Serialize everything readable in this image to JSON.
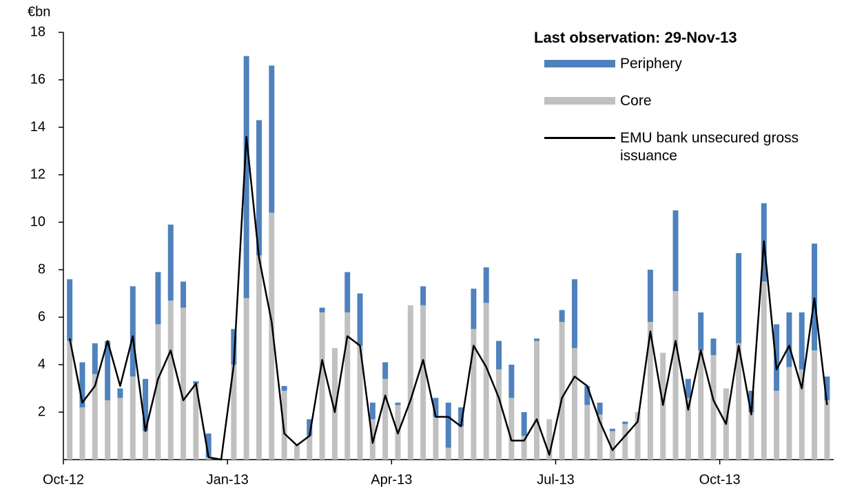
{
  "chart_data": {
    "type": "bar",
    "stacked": true,
    "y_axis_label": "€bn",
    "annotation": "Last observation: 29-Nov-13",
    "categories": [
      "Oct-12",
      null,
      null,
      null,
      null,
      null,
      null,
      null,
      null,
      null,
      null,
      null,
      null,
      "Jan-13",
      null,
      null,
      null,
      null,
      null,
      null,
      null,
      null,
      null,
      null,
      null,
      null,
      "Apr-13",
      null,
      null,
      null,
      null,
      null,
      null,
      null,
      null,
      null,
      null,
      null,
      null,
      "Jul-13",
      null,
      null,
      null,
      null,
      null,
      null,
      null,
      null,
      null,
      null,
      null,
      null,
      "Oct-13",
      null,
      null,
      null,
      null,
      null,
      null,
      null,
      null
    ],
    "series": [
      {
        "name": "Core",
        "color": "#c0c0c0",
        "values": [
          5.0,
          2.2,
          3.6,
          2.5,
          2.6,
          3.5,
          1.2,
          5.7,
          6.7,
          6.4,
          3.2,
          0.1,
          0,
          4.0,
          6.8,
          8.6,
          10.4,
          2.9,
          0.6,
          1.0,
          6.2,
          4.7,
          6.2,
          4.8,
          1.7,
          3.4,
          2.3,
          6.5,
          6.5,
          1.8,
          0.5,
          1.4,
          5.5,
          6.6,
          3.8,
          2.6,
          1.0,
          5.0,
          1.7,
          5.8,
          4.7,
          2.3,
          1.9,
          1.2,
          1.5,
          2.0,
          5.8,
          4.5,
          7.1,
          2.6,
          4.6,
          4.4,
          3.0,
          4.9,
          2.0,
          7.5,
          2.9,
          3.9,
          3.8,
          4.6,
          2.5
        ]
      },
      {
        "name": "Periphery",
        "color": "#4f81bd",
        "values": [
          2.6,
          1.9,
          1.3,
          2.5,
          0.4,
          3.8,
          2.2,
          2.2,
          3.2,
          1.1,
          0.1,
          1.0,
          0,
          1.5,
          10.2,
          5.7,
          6.2,
          0.2,
          0,
          0.7,
          0.2,
          0,
          1.7,
          2.2,
          0.7,
          0.7,
          0.1,
          0,
          0.8,
          0.8,
          1.9,
          0.8,
          1.7,
          1.5,
          1.2,
          1.4,
          1.0,
          0.1,
          0,
          0.5,
          2.9,
          0.8,
          0.5,
          0.1,
          0.1,
          0,
          2.2,
          0,
          3.4,
          0.8,
          1.6,
          0.7,
          0,
          3.8,
          0.9,
          3.3,
          2.8,
          2.3,
          2.4,
          4.5,
          1.0
        ]
      },
      {
        "name": "EMU bank unsecured gross issuance",
        "type": "line",
        "color": "#000000",
        "values": [
          5.1,
          2.4,
          3.1,
          5.0,
          3.1,
          5.2,
          1.2,
          3.4,
          4.6,
          2.5,
          3.2,
          0.1,
          0,
          4.0,
          13.6,
          8.5,
          5.8,
          1.1,
          0.6,
          1.0,
          4.2,
          2.0,
          5.2,
          4.8,
          0.7,
          2.7,
          1.1,
          2.5,
          4.2,
          1.8,
          1.8,
          1.4,
          4.8,
          3.9,
          2.6,
          0.8,
          0.8,
          1.7,
          0.2,
          2.6,
          3.5,
          3.1,
          1.6,
          0.4,
          1.0,
          1.6,
          5.4,
          2.3,
          5.0,
          2.1,
          4.6,
          2.5,
          1.5,
          4.8,
          1.9,
          9.2,
          3.8,
          4.8,
          3.0,
          6.8,
          2.3
        ]
      }
    ],
    "ylim": [
      0,
      18
    ],
    "yticks": [
      2,
      4,
      6,
      8,
      10,
      12,
      14,
      16,
      18
    ],
    "grid": false
  }
}
